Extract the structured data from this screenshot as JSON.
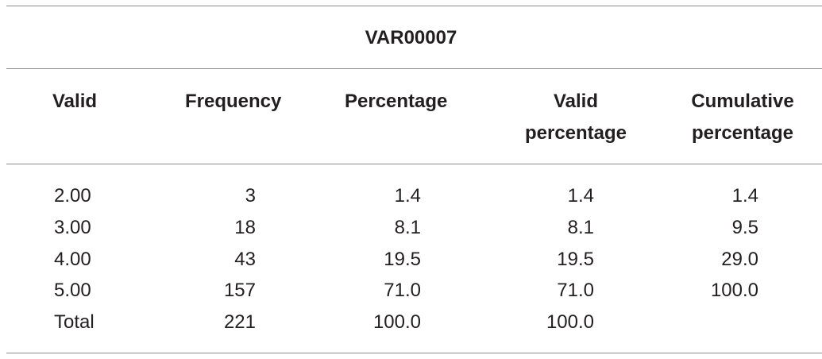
{
  "table": {
    "title": "VAR00007",
    "header": [
      "Valid",
      "Frequency",
      "Percentage",
      "Valid percentage",
      "Cumulative percentage"
    ],
    "rows": [
      [
        "2.00",
        "3",
        "1.4",
        "1.4",
        "1.4"
      ],
      [
        "3.00",
        "18",
        "8.1",
        "8.1",
        "9.5"
      ],
      [
        "4.00",
        "43",
        "19.5",
        "19.5",
        "29.0"
      ],
      [
        "5.00",
        "157",
        "71.0",
        "71.0",
        "100.0"
      ],
      [
        "Total",
        "221",
        "100.0",
        "100.0"
      ]
    ]
  }
}
